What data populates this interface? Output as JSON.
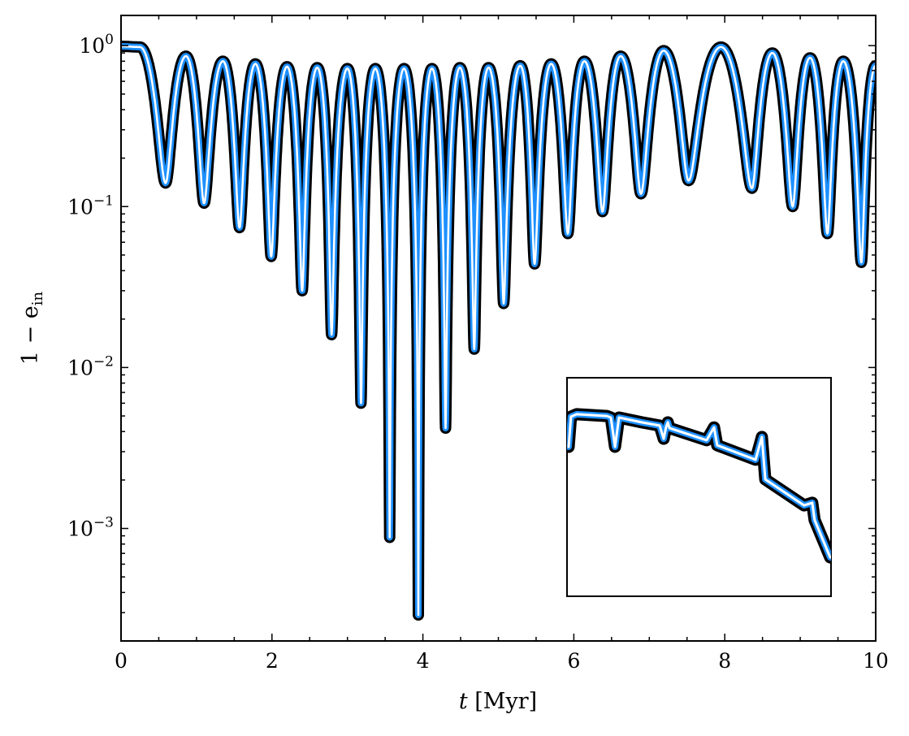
{
  "chart_data": [
    {
      "type": "line",
      "title": "",
      "xlabel": "t [Myr]",
      "xlabel_var": "t",
      "xlabel_unit": " [Myr]",
      "ylabel": "1 − e_in",
      "ylabel_main": "1 − e",
      "ylabel_sub": "in",
      "xlim": [
        0,
        10
      ],
      "ylim": [
        0.0002,
        1.54
      ],
      "yscale": "log",
      "grid": false,
      "xticks": [
        0,
        2,
        4,
        6,
        8,
        10
      ],
      "xtick_labels": [
        "0",
        "2",
        "4",
        "6",
        "8",
        "10"
      ],
      "yticks": [
        1,
        0.1,
        0.01,
        0.001
      ],
      "ytick_labels": [
        {
          "base": "10",
          "exp": "0"
        },
        {
          "base": "10",
          "exp": "−1"
        },
        {
          "base": "10",
          "exp": "−2"
        },
        {
          "base": "10",
          "exp": "−3"
        }
      ],
      "series": [
        {
          "name": "1 - e_in",
          "colors": {
            "outline": "#000000",
            "main": "#1E90FF",
            "core": "#FFFFFF"
          },
          "extrema": [
            [
              0.0,
              0.99
            ],
            [
              0.25,
              0.98
            ],
            [
              0.59,
              0.14
            ],
            [
              0.86,
              0.86
            ],
            [
              1.1,
              0.105
            ],
            [
              1.35,
              0.8
            ],
            [
              1.57,
              0.074
            ],
            [
              1.78,
              0.77
            ],
            [
              1.99,
              0.049
            ],
            [
              2.2,
              0.74
            ],
            [
              2.4,
              0.03
            ],
            [
              2.6,
              0.73
            ],
            [
              2.79,
              0.016
            ],
            [
              3.0,
              0.72
            ],
            [
              3.18,
              0.006
            ],
            [
              3.37,
              0.72
            ],
            [
              3.56,
              0.00088
            ],
            [
              3.75,
              0.72
            ],
            [
              3.94,
              0.00029
            ],
            [
              4.12,
              0.72
            ],
            [
              4.3,
              0.0042
            ],
            [
              4.49,
              0.73
            ],
            [
              4.68,
              0.013
            ],
            [
              4.87,
              0.73
            ],
            [
              5.07,
              0.025
            ],
            [
              5.29,
              0.75
            ],
            [
              5.48,
              0.044
            ],
            [
              5.7,
              0.77
            ],
            [
              5.92,
              0.068
            ],
            [
              6.14,
              0.8
            ],
            [
              6.38,
              0.093
            ],
            [
              6.62,
              0.86
            ],
            [
              6.89,
              0.12
            ],
            [
              7.19,
              0.93
            ],
            [
              7.52,
              0.145
            ],
            [
              7.95,
              0.98
            ],
            [
              8.36,
              0.13
            ],
            [
              8.63,
              0.9
            ],
            [
              8.9,
              0.1
            ],
            [
              9.13,
              0.84
            ],
            [
              9.36,
              0.068
            ],
            [
              9.57,
              0.8
            ],
            [
              9.81,
              0.045
            ],
            [
              10.0,
              0.75
            ]
          ]
        }
      ]
    },
    {
      "type": "line",
      "title": "",
      "xlabel": "",
      "ylabel": "",
      "axes_visible": false,
      "xlim": [
        0,
        100
      ],
      "ylim": [
        0,
        100
      ],
      "series": [
        {
          "name": "inset-zoom",
          "x": [
            0.6,
            1.5,
            3.7,
            15.1,
            16.6,
            18.2,
            19.7,
            28.3,
            35.1,
            36.6,
            37.5,
            38.2,
            38.8,
            52.9,
            55.7,
            56.9,
            71.4,
            73.8,
            75.1,
            89.8,
            92.9,
            93.8,
            99.7
          ],
          "y": [
            68.4,
            82.2,
            83.3,
            82.5,
            81.8,
            68.4,
            81.8,
            79.6,
            78.1,
            72.1,
            77.3,
            79.6,
            77.0,
            71.4,
            77.3,
            69.1,
            62.5,
            72.9,
            53.5,
            41.6,
            42.8,
            34.9,
            17.8
          ]
        }
      ]
    }
  ]
}
